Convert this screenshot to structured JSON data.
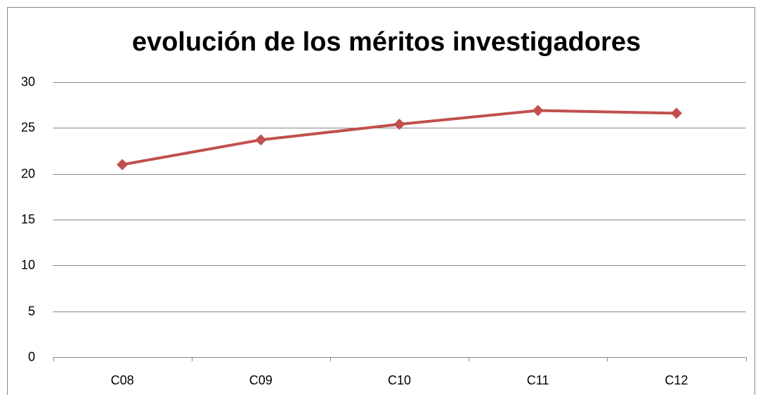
{
  "chart_data": {
    "type": "line",
    "title": "evolución de los méritos investigadores",
    "categories": [
      "C08",
      "C09",
      "C10",
      "C11",
      "C12"
    ],
    "values": [
      21,
      23.7,
      25.4,
      26.9,
      26.6
    ],
    "color": "#c0504d",
    "ylim": [
      0,
      30
    ],
    "yticks": [
      0,
      5,
      10,
      15,
      20,
      25,
      30
    ],
    "grid": true
  }
}
